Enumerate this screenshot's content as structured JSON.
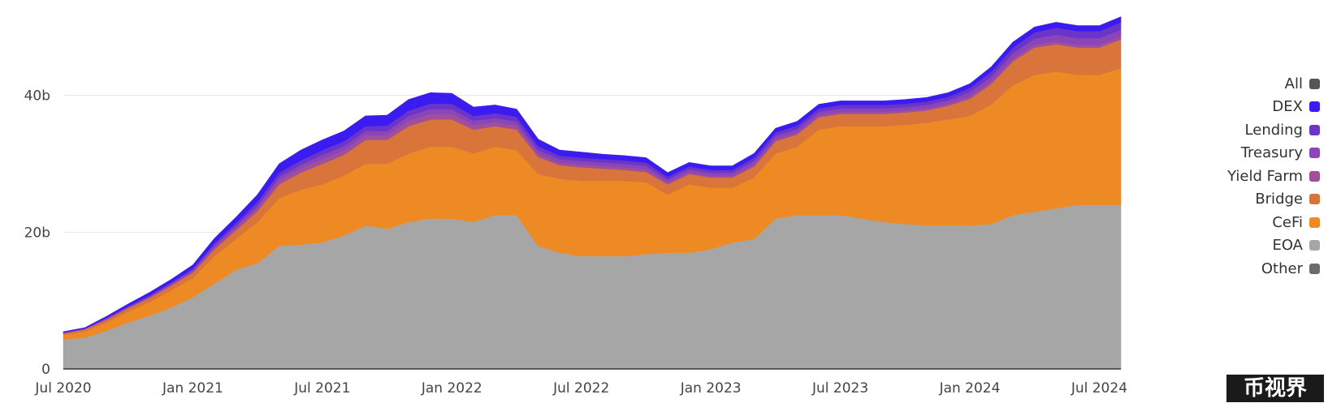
{
  "chart_data": {
    "type": "area",
    "title": "",
    "xlabel": "",
    "ylabel": "",
    "ylim": [
      0,
      53
    ],
    "y_ticks": [
      {
        "value": 0,
        "label": "0"
      },
      {
        "value": 20,
        "label": "20b"
      },
      {
        "value": 40,
        "label": "40b"
      }
    ],
    "x_ticks": [
      "Jul 2020",
      "Jan 2021",
      "Jul 2021",
      "Jan 2022",
      "Jul 2022",
      "Jan 2023",
      "Jul 2023",
      "Jan 2024",
      "Jul 2024"
    ],
    "legend_position": "right",
    "legend": [
      {
        "label": "All",
        "color": "#555555"
      },
      {
        "label": "DEX",
        "color": "#3b1cf0"
      },
      {
        "label": "Lending",
        "color": "#6a35c8"
      },
      {
        "label": "Treasury",
        "color": "#8a45b8"
      },
      {
        "label": "Yield Farm",
        "color": "#a0509a"
      },
      {
        "label": "Bridge",
        "color": "#d9743a"
      },
      {
        "label": "CeFi",
        "color": "#ee8a24"
      },
      {
        "label": "EOA",
        "color": "#a6a6a6"
      },
      {
        "label": "Other",
        "color": "#6b6b6b"
      }
    ],
    "x": [
      "2020-07",
      "2020-08",
      "2020-09",
      "2020-10",
      "2020-11",
      "2020-12",
      "2021-01",
      "2021-02",
      "2021-03",
      "2021-04",
      "2021-05",
      "2021-06",
      "2021-07",
      "2021-08",
      "2021-09",
      "2021-10",
      "2021-11",
      "2021-12",
      "2022-01",
      "2022-02",
      "2022-03",
      "2022-04",
      "2022-05",
      "2022-06",
      "2022-07",
      "2022-08",
      "2022-09",
      "2022-10",
      "2022-11",
      "2022-12",
      "2023-01",
      "2023-02",
      "2023-03",
      "2023-04",
      "2023-05",
      "2023-06",
      "2023-07",
      "2023-08",
      "2023-09",
      "2023-10",
      "2023-11",
      "2023-12",
      "2024-01",
      "2024-02",
      "2024-03",
      "2024-04",
      "2024-05",
      "2024-06",
      "2024-07",
      "2024-08"
    ],
    "series": [
      {
        "name": "EOA",
        "color": "#a6a6a6",
        "values": [
          4.3,
          4.6,
          5.6,
          6.8,
          7.8,
          9.0,
          10.5,
          12.5,
          14.5,
          15.5,
          18.0,
          18.2,
          18.5,
          19.5,
          21.0,
          20.5,
          21.5,
          22.0,
          22.0,
          21.5,
          22.5,
          22.5,
          18.0,
          17.0,
          16.5,
          16.5,
          16.5,
          16.8,
          17.0,
          17.0,
          17.5,
          18.5,
          19.0,
          22.0,
          22.5,
          22.5,
          22.5,
          22.0,
          21.5,
          21.2,
          21.0,
          21.0,
          21.0,
          21.2,
          22.5,
          23.0,
          23.5,
          24.0,
          24.0,
          24.0
        ]
      },
      {
        "name": "CeFi",
        "color": "#ee8a24",
        "values": [
          0.7,
          0.9,
          1.2,
          1.6,
          2.0,
          2.5,
          2.8,
          4.0,
          4.5,
          6.0,
          7.0,
          8.0,
          8.5,
          8.8,
          9.0,
          9.5,
          10.0,
          10.5,
          10.5,
          10.0,
          10.0,
          9.5,
          10.5,
          10.8,
          11.0,
          11.0,
          11.0,
          10.5,
          8.5,
          10.0,
          9.0,
          8.0,
          9.0,
          9.5,
          10.0,
          12.5,
          13.0,
          13.5,
          14.0,
          14.5,
          15.0,
          15.5,
          16.0,
          17.5,
          19.0,
          20.0,
          20.0,
          19.0,
          19.0,
          20.0
        ]
      },
      {
        "name": "Bridge",
        "color": "#d9743a",
        "values": [
          0.2,
          0.3,
          0.4,
          0.5,
          0.6,
          0.7,
          0.8,
          1.0,
          1.3,
          1.6,
          2.0,
          2.5,
          3.0,
          3.0,
          3.5,
          3.5,
          4.0,
          4.0,
          4.0,
          3.5,
          3.0,
          3.0,
          2.5,
          2.0,
          2.0,
          1.8,
          1.6,
          1.5,
          1.5,
          1.5,
          1.5,
          1.5,
          1.6,
          1.8,
          1.8,
          1.8,
          1.8,
          1.8,
          1.8,
          1.8,
          1.8,
          2.0,
          2.5,
          3.0,
          3.5,
          4.0,
          4.0,
          4.0,
          4.0,
          4.2
        ]
      },
      {
        "name": "Yield Farm",
        "color": "#a0509a",
        "values": [
          0.05,
          0.05,
          0.1,
          0.1,
          0.15,
          0.15,
          0.2,
          0.3,
          0.4,
          0.5,
          0.6,
          0.7,
          0.7,
          0.7,
          0.7,
          0.7,
          0.8,
          0.8,
          0.8,
          0.7,
          0.6,
          0.6,
          0.5,
          0.4,
          0.4,
          0.4,
          0.4,
          0.4,
          0.3,
          0.3,
          0.3,
          0.3,
          0.3,
          0.3,
          0.3,
          0.3,
          0.3,
          0.3,
          0.3,
          0.3,
          0.3,
          0.3,
          0.4,
          0.4,
          0.4,
          0.4,
          0.4,
          0.4,
          0.4,
          0.4
        ]
      },
      {
        "name": "Treasury",
        "color": "#8a45b8",
        "values": [
          0.05,
          0.05,
          0.1,
          0.1,
          0.1,
          0.15,
          0.2,
          0.3,
          0.3,
          0.4,
          0.5,
          0.5,
          0.6,
          0.6,
          0.6,
          0.6,
          0.7,
          0.7,
          0.7,
          0.6,
          0.6,
          0.6,
          0.5,
          0.5,
          0.5,
          0.5,
          0.5,
          0.5,
          0.4,
          0.4,
          0.4,
          0.4,
          0.5,
          0.5,
          0.5,
          0.5,
          0.5,
          0.5,
          0.5,
          0.5,
          0.5,
          0.5,
          0.6,
          0.7,
          0.8,
          0.9,
          1.0,
          1.0,
          1.0,
          1.0
        ]
      },
      {
        "name": "Lending",
        "color": "#6a35c8",
        "values": [
          0.05,
          0.05,
          0.1,
          0.1,
          0.15,
          0.2,
          0.2,
          0.3,
          0.4,
          0.5,
          0.6,
          0.6,
          0.7,
          0.7,
          0.7,
          0.8,
          0.8,
          0.8,
          0.8,
          0.7,
          0.7,
          0.7,
          0.6,
          0.5,
          0.5,
          0.5,
          0.5,
          0.5,
          0.4,
          0.4,
          0.4,
          0.4,
          0.5,
          0.5,
          0.5,
          0.5,
          0.5,
          0.5,
          0.5,
          0.5,
          0.5,
          0.5,
          0.6,
          0.7,
          0.8,
          0.9,
          1.0,
          1.0,
          1.0,
          1.1
        ]
      },
      {
        "name": "DEX",
        "color": "#3b1cf0",
        "values": [
          0.1,
          0.1,
          0.2,
          0.3,
          0.4,
          0.4,
          0.5,
          0.7,
          0.8,
          1.0,
          1.3,
          1.5,
          1.5,
          1.5,
          1.5,
          1.5,
          1.6,
          1.6,
          1.5,
          1.3,
          1.2,
          1.1,
          1.0,
          0.8,
          0.8,
          0.7,
          0.7,
          0.7,
          0.6,
          0.6,
          0.6,
          0.6,
          0.6,
          0.6,
          0.6,
          0.6,
          0.6,
          0.6,
          0.6,
          0.6,
          0.6,
          0.6,
          0.6,
          0.7,
          0.8,
          0.8,
          0.8,
          0.8,
          0.8,
          0.8
        ]
      }
    ]
  },
  "watermark": "币视界"
}
